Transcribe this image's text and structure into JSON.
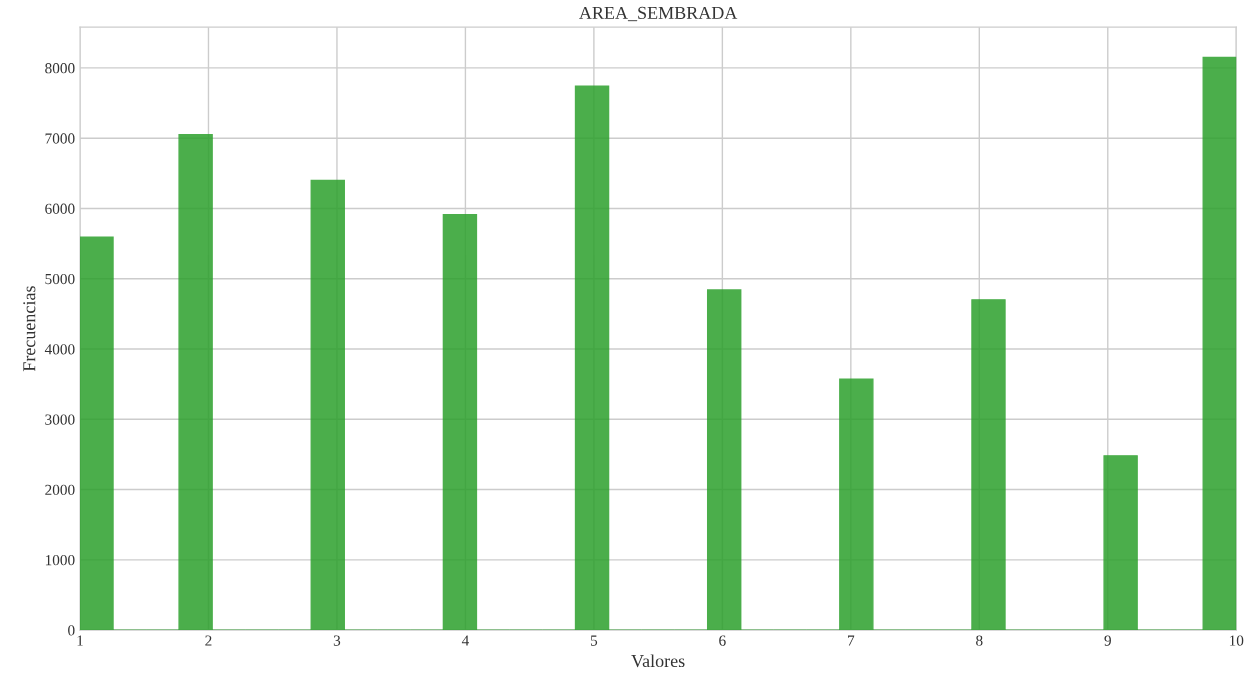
{
  "chart_data": {
    "type": "histogram",
    "title": "AREA_SEMBRADA",
    "xlabel": "Valores",
    "ylabel": "Frecuencias",
    "bins": [
      1.0,
      1.2571,
      1.5143,
      1.7714,
      2.0286,
      2.2857,
      2.5429,
      2.8,
      3.0571,
      3.3143,
      3.5714,
      3.8286,
      4.0857,
      4.3429,
      4.6,
      4.8571,
      5.1143,
      5.3714,
      5.6286,
      5.8857,
      6.1429,
      6.4,
      6.6571,
      6.9143,
      7.1714,
      7.4286,
      7.6857,
      7.9429,
      8.2,
      8.4571,
      8.7143,
      8.9714,
      9.2286,
      9.4857,
      9.7429,
      10.0
    ],
    "values": [
      5590,
      0,
      0,
      7050,
      0,
      0,
      0,
      6400,
      0,
      0,
      0,
      5910,
      0,
      0,
      0,
      7740,
      0,
      0,
      0,
      4840,
      0,
      0,
      0,
      3570,
      0,
      0,
      0,
      4700,
      0,
      0,
      0,
      2480,
      0,
      0,
      8150
    ],
    "color": "#2ca02c",
    "xlim": [
      1,
      10
    ],
    "ylim": [
      0,
      8580
    ],
    "xticks": [
      1,
      2,
      3,
      4,
      5,
      6,
      7,
      8,
      9,
      10
    ],
    "yticks": [
      0,
      1000,
      2000,
      3000,
      4000,
      5000,
      6000,
      7000,
      8000
    ],
    "grid": true
  }
}
